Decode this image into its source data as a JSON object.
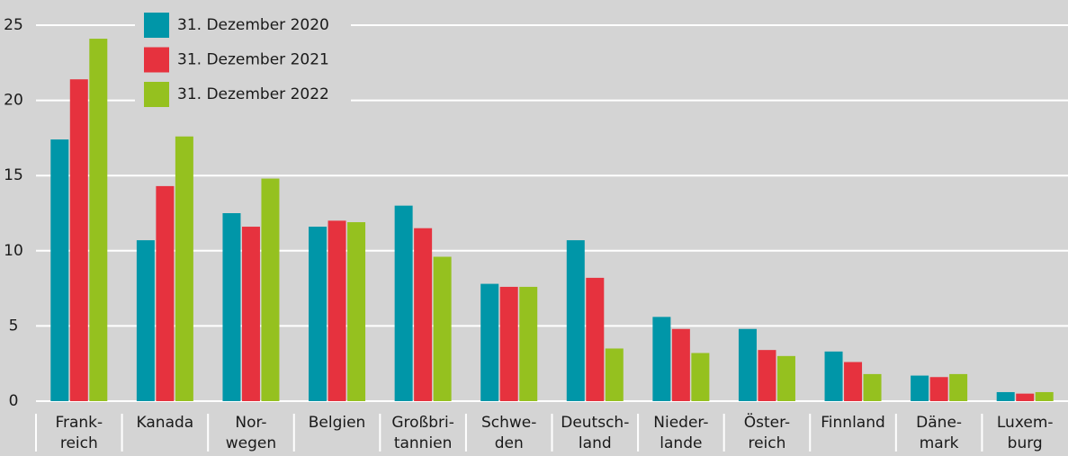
{
  "chart_data": {
    "type": "bar",
    "categories": [
      [
        "Frank-",
        "reich"
      ],
      [
        "Kanada"
      ],
      [
        "Nor-",
        "wegen"
      ],
      [
        "Belgien"
      ],
      [
        "Großbri-",
        "tannien"
      ],
      [
        "Schwe-",
        "den"
      ],
      [
        "Deutsch-",
        "land"
      ],
      [
        "Nieder-",
        "lande"
      ],
      [
        "Öster-",
        "reich"
      ],
      [
        "Finnland"
      ],
      [
        "Däne-",
        "mark"
      ],
      [
        "Luxem-",
        "burg"
      ]
    ],
    "series": [
      {
        "name": "31. Dezember 2020",
        "color": "#0096a8",
        "values": [
          17.4,
          10.7,
          12.5,
          11.6,
          13.0,
          7.8,
          10.7,
          5.6,
          4.8,
          3.3,
          1.7,
          0.6
        ]
      },
      {
        "name": "31. Dezember 2021",
        "color": "#e6323e",
        "values": [
          21.4,
          14.3,
          11.6,
          12.0,
          11.5,
          7.6,
          8.2,
          4.8,
          3.4,
          2.6,
          1.6,
          0.5
        ]
      },
      {
        "name": "31. Dezember 2022",
        "color": "#95c11f",
        "values": [
          24.1,
          17.6,
          14.8,
          11.9,
          9.6,
          7.6,
          3.5,
          3.2,
          3.0,
          1.8,
          1.8,
          0.6
        ]
      }
    ],
    "ylim": [
      0,
      25
    ],
    "yticks": [
      0,
      5,
      10,
      15,
      20,
      25
    ],
    "grid": true,
    "legend": "top-left"
  }
}
